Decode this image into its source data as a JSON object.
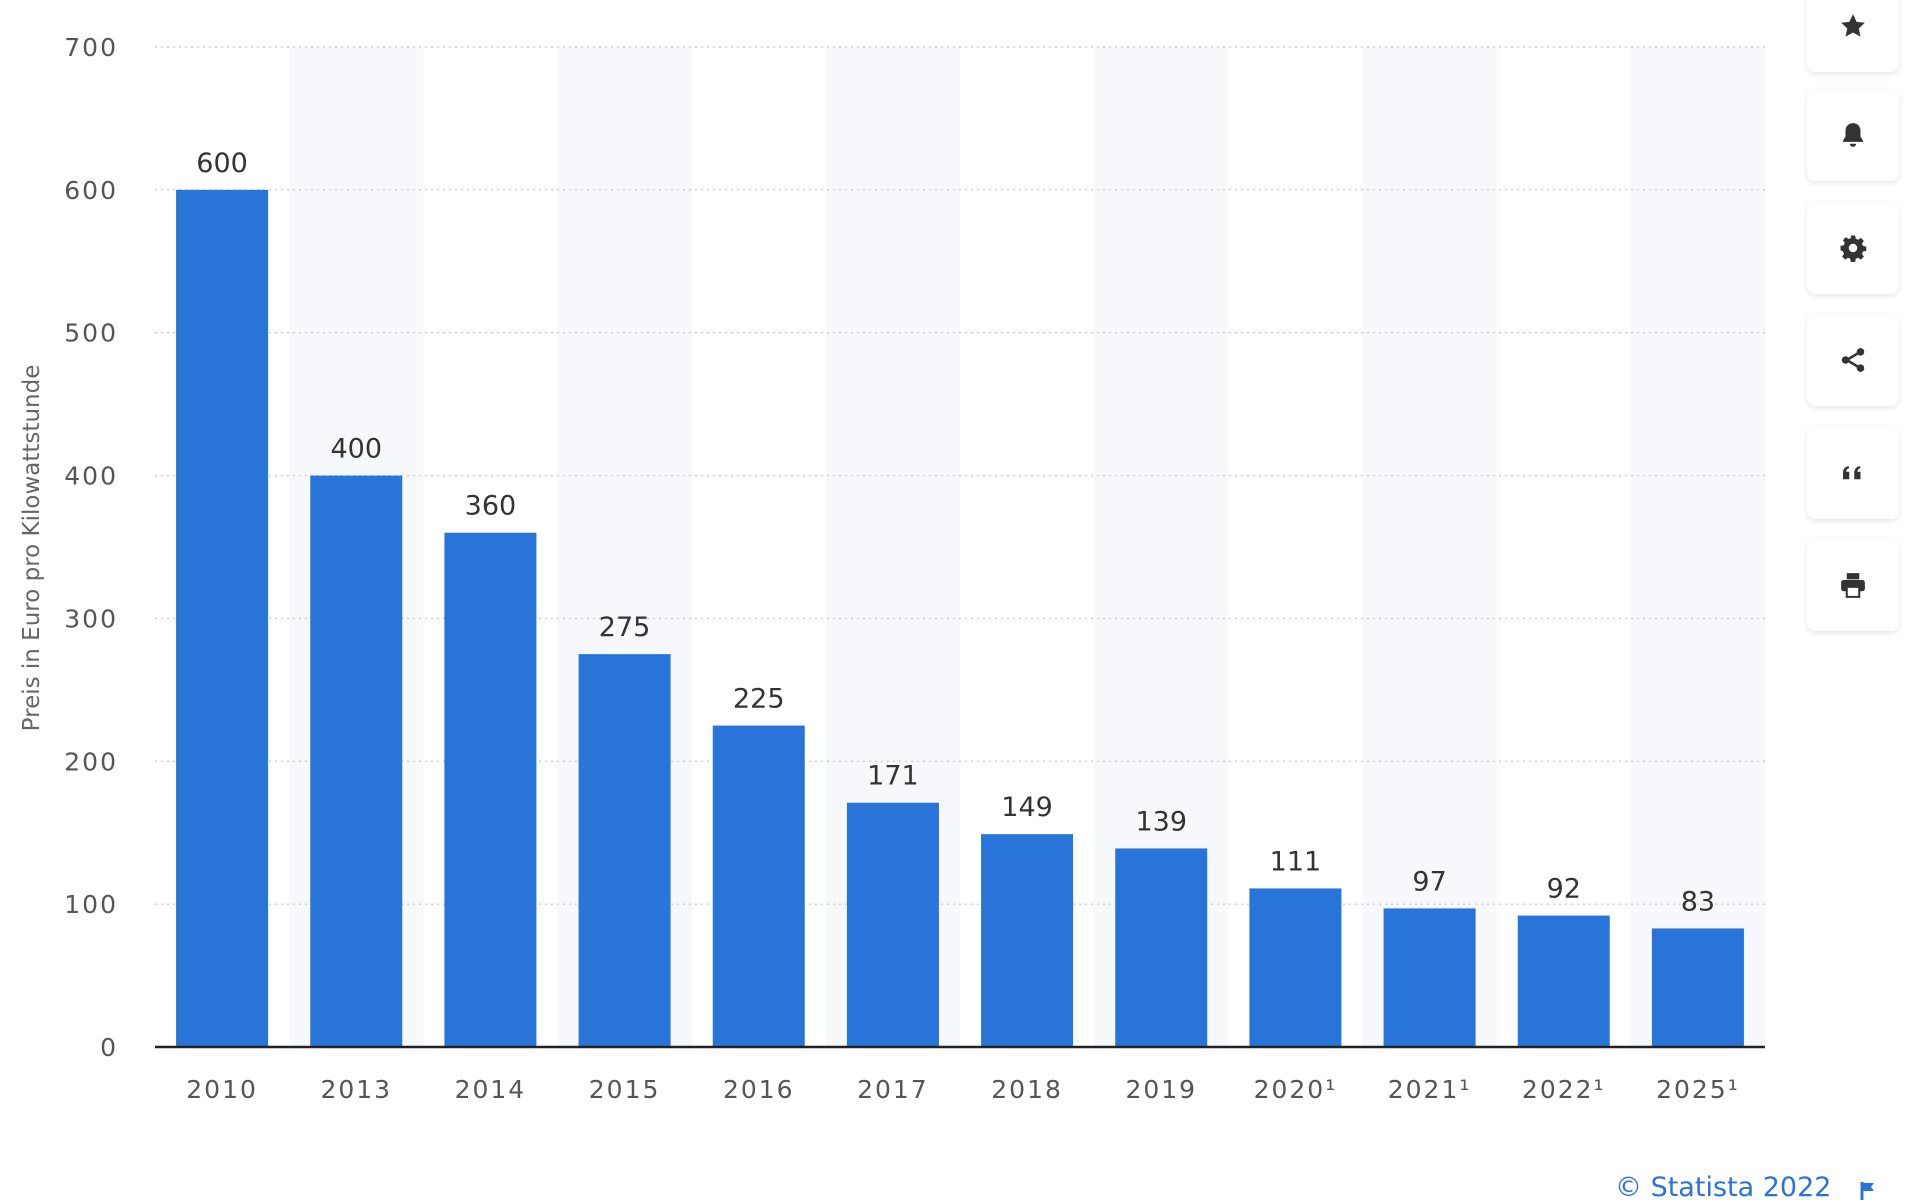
{
  "chart_data": {
    "type": "bar",
    "title": "",
    "xlabel": "",
    "ylabel": "Preis in Euro pro Kilowattstunde",
    "categories": [
      "2010",
      "2013",
      "2014",
      "2015",
      "2016",
      "2017",
      "2018",
      "2019",
      "2020¹",
      "2021¹",
      "2022¹",
      "2025¹"
    ],
    "values": [
      600,
      400,
      360,
      275,
      225,
      171,
      149,
      139,
      111,
      97,
      92,
      83
    ],
    "ylim": [
      0,
      700
    ],
    "yticks": [
      "0",
      "100",
      "200",
      "300",
      "400",
      "500",
      "600",
      "700"
    ],
    "bar_color": "#2874d9",
    "grid": "horizontal-dotted",
    "legend": "none"
  },
  "toolbar": [
    {
      "icon": "star-icon",
      "name": "favorite-button"
    },
    {
      "icon": "bell-icon",
      "name": "notification-button"
    },
    {
      "icon": "gear-icon",
      "name": "settings-button"
    },
    {
      "icon": "share-icon",
      "name": "share-button"
    },
    {
      "icon": "quote-icon",
      "name": "cite-button"
    },
    {
      "icon": "print-icon",
      "name": "print-button"
    }
  ],
  "credit": {
    "text": "© Statista 2022",
    "color": "#2b73d6"
  }
}
